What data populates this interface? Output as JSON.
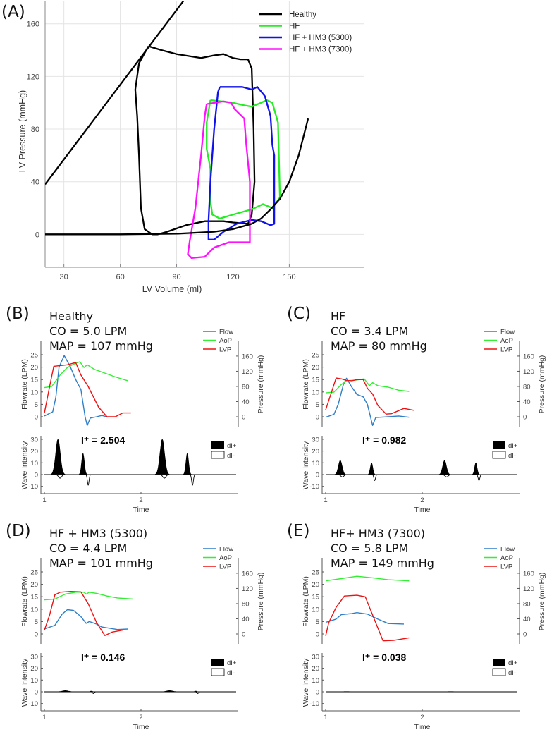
{
  "chart_data": [
    {
      "id": "A",
      "type": "line",
      "panel_label": "(A)",
      "xlabel": "LV Volume (ml)",
      "ylabel": "LV Pressure (mmHg)",
      "xlim": [
        20,
        190
      ],
      "ylim": [
        -25,
        177
      ],
      "xticks": [
        30,
        60,
        90,
        120,
        150
      ],
      "yticks": [
        0,
        40,
        80,
        120,
        160
      ],
      "grid": true,
      "legend_position": "top-right",
      "legend": [
        "Healthy",
        "HF",
        "HF + HM3 (5300)",
        "HF + HM3 (7300)"
      ],
      "colors": [
        "#000000",
        "#22ee22",
        "#1111ee",
        "#ff11ff"
      ],
      "series": [
        {
          "name": "Healthy",
          "points": [
            [
              75,
              143
            ],
            [
              82,
              140
            ],
            [
              90,
              137
            ],
            [
              103,
              134
            ],
            [
              110,
              136
            ],
            [
              115,
              137
            ],
            [
              120,
              134
            ],
            [
              124,
              133
            ],
            [
              128,
              133
            ],
            [
              130,
              126
            ],
            [
              131,
              80
            ],
            [
              131.5,
              40
            ],
            [
              130,
              15
            ],
            [
              128,
              8
            ],
            [
              120,
              9
            ],
            [
              115,
              10
            ],
            [
              105,
              10
            ],
            [
              95,
              7
            ],
            [
              85,
              2
            ],
            [
              80,
              0
            ],
            [
              77,
              0
            ],
            [
              73,
              4
            ],
            [
              71,
              20
            ],
            [
              70,
              60
            ],
            [
              69,
              90
            ],
            [
              68,
              110
            ],
            [
              70,
              130
            ],
            [
              75,
              143
            ]
          ]
        },
        {
          "name": "HF",
          "points": [
            [
              108,
              102
            ],
            [
              120,
              100
            ],
            [
              126,
              98
            ],
            [
              130,
              97
            ],
            [
              135,
              100
            ],
            [
              138,
              102
            ],
            [
              141,
              100
            ],
            [
              144,
              85
            ],
            [
              145,
              28
            ],
            [
              141,
              20
            ],
            [
              136,
              23
            ],
            [
              130,
              19
            ],
            [
              120,
              15
            ],
            [
              113,
              12
            ],
            [
              109,
              15
            ],
            [
              108,
              25
            ],
            [
              108,
              50
            ],
            [
              106,
              65
            ],
            [
              106,
              85
            ],
            [
              108,
              102
            ]
          ]
        },
        {
          "name": "HF + HM3 (5300)",
          "points": [
            [
              113,
              112
            ],
            [
              125,
              112
            ],
            [
              130,
              110
            ],
            [
              133,
              112
            ],
            [
              137,
              105
            ],
            [
              140,
              90
            ],
            [
              141,
              68
            ],
            [
              142,
              60
            ],
            [
              142,
              8
            ],
            [
              140,
              7
            ],
            [
              135,
              10
            ],
            [
              130,
              11
            ],
            [
              122,
              8
            ],
            [
              115,
              2
            ],
            [
              110,
              -4
            ],
            [
              107,
              -4
            ],
            [
              107,
              10
            ],
            [
              108,
              40
            ],
            [
              110,
              80
            ],
            [
              112,
              108
            ],
            [
              113,
              112
            ]
          ]
        },
        {
          "name": "HF + HM3 (7300)",
          "points": [
            [
              106,
              99
            ],
            [
              115,
              101
            ],
            [
              119,
              100
            ],
            [
              121,
              95
            ],
            [
              126,
              88
            ],
            [
              127,
              70
            ],
            [
              129,
              40
            ],
            [
              129,
              -6
            ],
            [
              118,
              -6
            ],
            [
              110,
              -10
            ],
            [
              105,
              -17
            ],
            [
              98,
              -18
            ],
            [
              96,
              -15
            ],
            [
              97,
              -5
            ],
            [
              100,
              20
            ],
            [
              103,
              60
            ],
            [
              105,
              90
            ],
            [
              106,
              99
            ]
          ]
        },
        {
          "name": "ESPVR",
          "points": [
            [
              20,
              38
            ],
            [
              95,
              180
            ]
          ]
        },
        {
          "name": "EDPVR",
          "points": [
            [
              20,
              0
            ],
            [
              60,
              0
            ],
            [
              90,
              0.5
            ],
            [
              110,
              2
            ],
            [
              120,
              4
            ],
            [
              130,
              8
            ],
            [
              135,
              12
            ],
            [
              140,
              19
            ],
            [
              145,
              27
            ],
            [
              150,
              40
            ],
            [
              155,
              60
            ],
            [
              160,
              88
            ]
          ]
        }
      ]
    },
    {
      "id": "B",
      "panel_label": "(B)",
      "title": "Healthy",
      "co": "CO = 5.0 LPM",
      "map": "MAP = 107 mmHg",
      "i_plus": "I⁺ = 2.504",
      "type": "line",
      "period": 1.08,
      "flow": [
        [
          0,
          0.3
        ],
        [
          0.08,
          2
        ],
        [
          0.11,
          8
        ],
        [
          0.14,
          20
        ],
        [
          0.19,
          24.7
        ],
        [
          0.25,
          20
        ],
        [
          0.3,
          15
        ],
        [
          0.35,
          11
        ],
        [
          0.39,
          0
        ],
        [
          0.41,
          -3.5
        ],
        [
          0.44,
          -0.5
        ],
        [
          0.5,
          0
        ],
        [
          0.55,
          0.5
        ],
        [
          0.6,
          0
        ],
        [
          1,
          0
        ]
      ],
      "aop": [
        [
          0,
          77
        ],
        [
          0.07,
          80
        ],
        [
          0.15,
          110
        ],
        [
          0.22,
          130
        ],
        [
          0.29,
          140
        ],
        [
          0.34,
          145
        ],
        [
          0.38,
          130
        ],
        [
          0.41,
          137
        ],
        [
          0.48,
          125
        ],
        [
          0.58,
          115
        ],
        [
          0.68,
          105
        ],
        [
          0.8,
          95
        ],
        [
          0.93,
          80
        ],
        [
          1,
          77
        ]
      ],
      "lvp": [
        [
          0,
          10
        ],
        [
          0.05,
          80
        ],
        [
          0.09,
          133
        ],
        [
          0.15,
          135
        ],
        [
          0.22,
          137
        ],
        [
          0.3,
          143
        ],
        [
          0.35,
          110
        ],
        [
          0.42,
          80
        ],
        [
          0.52,
          25
        ],
        [
          0.6,
          0
        ],
        [
          0.68,
          0
        ],
        [
          0.75,
          10
        ],
        [
          0.83,
          10
        ],
        [
          0.93,
          12
        ],
        [
          1,
          10
        ]
      ],
      "dI_plus_peaks": [
        [
          0.13,
          30,
          0.022
        ],
        [
          0.37,
          18,
          0.013
        ]
      ],
      "dI_minus_dips": [
        [
          0.15,
          -3,
          0.015
        ],
        [
          0.42,
          -9,
          0.008
        ]
      ]
    },
    {
      "id": "C",
      "panel_label": "(C)",
      "title": "HF",
      "co": "CO = 3.4 LPM",
      "map": "MAP = 80 mmHg",
      "i_plus": "I⁺ = 0.982",
      "type": "line",
      "period": 1.08,
      "flow": [
        [
          0,
          -0.2
        ],
        [
          0.08,
          1
        ],
        [
          0.12,
          5
        ],
        [
          0.17,
          13
        ],
        [
          0.2,
          15.5
        ],
        [
          0.25,
          12
        ],
        [
          0.3,
          9
        ],
        [
          0.36,
          8
        ],
        [
          0.4,
          5
        ],
        [
          0.45,
          -3.5
        ],
        [
          0.48,
          -0.3
        ],
        [
          0.6,
          0
        ],
        [
          0.7,
          0.3
        ],
        [
          0.8,
          -0.2
        ],
        [
          1,
          -0.2
        ]
      ],
      "aop": [
        [
          0,
          63
        ],
        [
          0.08,
          65
        ],
        [
          0.15,
          85
        ],
        [
          0.2,
          95
        ],
        [
          0.3,
          97
        ],
        [
          0.37,
          100
        ],
        [
          0.42,
          82
        ],
        [
          0.45,
          90
        ],
        [
          0.5,
          82
        ],
        [
          0.6,
          78
        ],
        [
          0.7,
          70
        ],
        [
          0.8,
          67
        ],
        [
          0.95,
          63
        ],
        [
          1,
          63
        ]
      ],
      "lvp": [
        [
          0,
          18
        ],
        [
          0.05,
          60
        ],
        [
          0.1,
          102
        ],
        [
          0.15,
          100
        ],
        [
          0.2,
          96
        ],
        [
          0.25,
          95
        ],
        [
          0.3,
          98
        ],
        [
          0.36,
          98
        ],
        [
          0.4,
          75
        ],
        [
          0.45,
          60
        ],
        [
          0.5,
          30
        ],
        [
          0.58,
          7
        ],
        [
          0.63,
          8
        ],
        [
          0.75,
          22
        ],
        [
          0.85,
          17
        ],
        [
          0.92,
          15
        ],
        [
          1,
          18
        ]
      ],
      "dI_plus_peaks": [
        [
          0.14,
          12,
          0.018
        ],
        [
          0.44,
          10,
          0.012
        ]
      ],
      "dI_minus_dips": [
        [
          0.16,
          -2,
          0.015
        ],
        [
          0.47,
          -5,
          0.008
        ]
      ]
    },
    {
      "id": "D",
      "panel_label": "(D)",
      "title": "HF + HM3 (5300)",
      "co": "CO = 4.4 LPM",
      "map": "MAP = 101 mmHg",
      "i_plus": "I⁺ = 0.146",
      "type": "line",
      "period": 1.08,
      "flow": [
        [
          0,
          2
        ],
        [
          0.1,
          3.5
        ],
        [
          0.17,
          8
        ],
        [
          0.22,
          9.8
        ],
        [
          0.28,
          9.5
        ],
        [
          0.35,
          7
        ],
        [
          0.4,
          4.3
        ],
        [
          0.43,
          5
        ],
        [
          0.5,
          4
        ],
        [
          0.55,
          2.8
        ],
        [
          0.7,
          1.8
        ],
        [
          0.8,
          2
        ],
        [
          0.9,
          1.8
        ],
        [
          1,
          2
        ]
      ],
      "aop": [
        [
          0,
          90
        ],
        [
          0.1,
          92
        ],
        [
          0.2,
          105
        ],
        [
          0.3,
          110
        ],
        [
          0.38,
          110
        ],
        [
          0.4,
          105
        ],
        [
          0.43,
          110
        ],
        [
          0.5,
          107
        ],
        [
          0.6,
          100
        ],
        [
          0.7,
          95
        ],
        [
          0.85,
          92
        ],
        [
          1,
          90
        ]
      ],
      "lvp": [
        [
          0,
          10
        ],
        [
          0.05,
          50
        ],
        [
          0.1,
          103
        ],
        [
          0.15,
          110
        ],
        [
          0.25,
          112
        ],
        [
          0.35,
          111
        ],
        [
          0.42,
          80
        ],
        [
          0.5,
          30
        ],
        [
          0.58,
          -4
        ],
        [
          0.65,
          5
        ],
        [
          0.75,
          10
        ],
        [
          0.9,
          7
        ],
        [
          0.95,
          10
        ],
        [
          1,
          10
        ]
      ],
      "dI_plus_peaks": [
        [
          0.2,
          1,
          0.03
        ],
        [
          0.45,
          0.6,
          0.01
        ]
      ],
      "dI_minus_dips": [
        [
          0.47,
          -1.5,
          0.008
        ]
      ]
    },
    {
      "id": "E",
      "panel_label": "(E)",
      "title": "HF+ HM3 (7300)",
      "co": "CO = 5.8 LPM",
      "map": "MAP = 149 mmHg",
      "i_plus": "I⁺ = 0.038",
      "type": "line",
      "period": 1.08,
      "flow": [
        [
          0,
          4.7
        ],
        [
          0.1,
          6
        ],
        [
          0.15,
          7.8
        ],
        [
          0.25,
          8.2
        ],
        [
          0.3,
          8.6
        ],
        [
          0.4,
          8
        ],
        [
          0.5,
          6
        ],
        [
          0.6,
          4.2
        ],
        [
          0.75,
          4
        ],
        [
          0.9,
          4.5
        ],
        [
          1,
          4.7
        ]
      ],
      "aop": [
        [
          0,
          140
        ],
        [
          0.15,
          146
        ],
        [
          0.3,
          152
        ],
        [
          0.45,
          148
        ],
        [
          0.6,
          143
        ],
        [
          0.8,
          140
        ],
        [
          1,
          140
        ]
      ],
      "lvp": [
        [
          0,
          -5
        ],
        [
          0.03,
          30
        ],
        [
          0.1,
          70
        ],
        [
          0.18,
          100
        ],
        [
          0.3,
          102
        ],
        [
          0.38,
          98
        ],
        [
          0.45,
          50
        ],
        [
          0.55,
          -18
        ],
        [
          0.65,
          -17
        ],
        [
          0.8,
          -10
        ],
        [
          0.95,
          -8
        ],
        [
          1,
          -5
        ]
      ],
      "dI_plus_peaks": [
        [
          0.2,
          0.2,
          0.03
        ]
      ],
      "dI_minus_dips": []
    }
  ],
  "small_axes": {
    "flow_ylabel": "Flowrate (LPM)",
    "pressure_ylabel": "Pressure (mmHg)",
    "wave_ylabel": "Wave Intensity",
    "xlabel": "Time",
    "flow_ticks": [
      0,
      5,
      10,
      15,
      20,
      25
    ],
    "pressure_ticks": [
      0,
      40,
      80,
      120,
      160
    ],
    "wave_ticks": [
      -10,
      0,
      10,
      20,
      30
    ],
    "time_ticks": [
      1,
      2
    ],
    "legend": [
      "Flow",
      "AoP",
      "LVP"
    ],
    "legend_colors": [
      "#2f7fc8",
      "#33ee33",
      "#ee1111"
    ],
    "wave_legend": [
      "dI+",
      "dI-"
    ]
  }
}
